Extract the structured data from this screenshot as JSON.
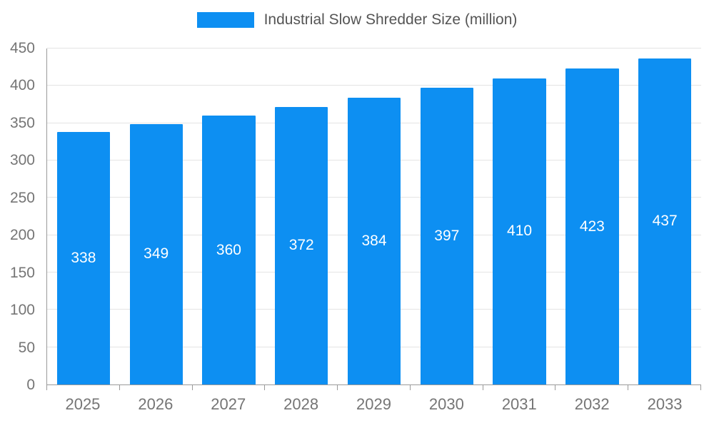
{
  "chart_data": {
    "type": "bar",
    "title": "Industrial Slow Shredder Size (million)",
    "categories": [
      "2025",
      "2026",
      "2027",
      "2028",
      "2029",
      "2030",
      "2031",
      "2032",
      "2033"
    ],
    "values": [
      338,
      349,
      360,
      372,
      384,
      397,
      410,
      423,
      437
    ],
    "xlabel": "",
    "ylabel": "",
    "ylim": [
      0,
      450
    ],
    "ytick_step": 50,
    "grid": true,
    "legend_position": "top",
    "bar_color": "#0d8ff2",
    "label_color": "#ffffff",
    "axis_text_color": "#757575",
    "grid_color": "#e4e4e4"
  }
}
